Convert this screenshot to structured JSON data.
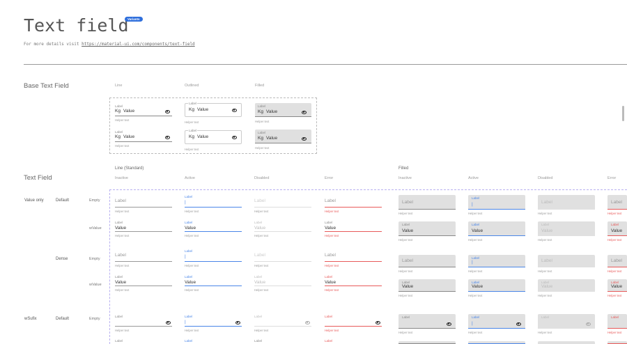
{
  "header": {
    "title": "Text field",
    "badge": "Variants",
    "subtitle_prefix": "For more details visit",
    "link": "https://material-ui.com/components/text-field"
  },
  "colors": {
    "active": "#4a86e8",
    "error": "#e85a5a",
    "badge": "#2f6fdc",
    "filled_bg": "#e0e0e0"
  },
  "base": {
    "title": "Base Text Field",
    "columns": [
      "Line",
      "Outlined",
      "Filled"
    ],
    "field": {
      "label": "Label",
      "prefix": "Kg",
      "value": "Value",
      "helper": "Helper text",
      "icon": "eye-icon"
    }
  },
  "text_field": {
    "title": "Text Field",
    "groups": [
      "Line (Standard)",
      "Filled"
    ],
    "states": [
      "Inactive",
      "Active",
      "Disabled",
      "Error"
    ],
    "row_labels": {
      "value_only": "Value only",
      "wsufix": "wSufix",
      "default": "Default",
      "dense": "Dense",
      "empty": "Empty",
      "wvalue": "wValue"
    },
    "field": {
      "label": "Label",
      "value": "Value",
      "cursor": "|",
      "helper": "Helper text"
    }
  }
}
